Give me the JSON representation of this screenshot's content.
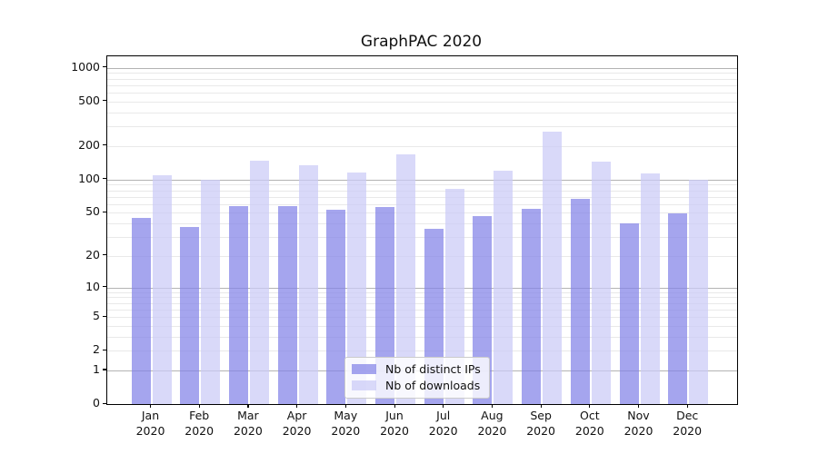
{
  "title": "GraphPAC 2020",
  "colors": {
    "ips_bar": "rgba(130,130,232,0.72)",
    "downloads_bar": "rgba(202,202,247,0.72)",
    "grid_major": "#b3b3b3",
    "grid_minor": "#e9e9e9",
    "spine": "#000000",
    "legend_border": "#cbcbcb"
  },
  "chart_data": {
    "type": "bar",
    "title": "GraphPAC 2020",
    "categories": [
      "Jan 2020",
      "Feb 2020",
      "Mar 2020",
      "Apr 2020",
      "May 2020",
      "Jun 2020",
      "Jul 2020",
      "Aug 2020",
      "Sep 2020",
      "Oct 2020",
      "Nov 2020",
      "Dec 2020"
    ],
    "series": [
      {
        "name": "Nb of distinct IPs",
        "values": [
          45,
          37,
          58,
          58,
          53,
          56,
          36,
          47,
          54,
          67,
          40,
          49
        ]
      },
      {
        "name": "Nb of downloads",
        "values": [
          110,
          100,
          147,
          135,
          115,
          168,
          82,
          120,
          267,
          145,
          113,
          100
        ]
      }
    ],
    "xlabel": "",
    "ylabel": "",
    "yscale": "log10(1+y)",
    "ylim": [
      0,
      1285
    ],
    "y_tick_values": [
      1000,
      500,
      200,
      100,
      50,
      20,
      10,
      5,
      2,
      1,
      0
    ],
    "y_major_gridlines": [
      1,
      10,
      100,
      1000
    ],
    "y_minor_gridlines": [
      2,
      3,
      4,
      5,
      6,
      7,
      8,
      9,
      20,
      30,
      40,
      50,
      60,
      70,
      80,
      90,
      200,
      300,
      400,
      500,
      600,
      700,
      800,
      900
    ],
    "grid": "on",
    "legend_position": "lower center"
  }
}
